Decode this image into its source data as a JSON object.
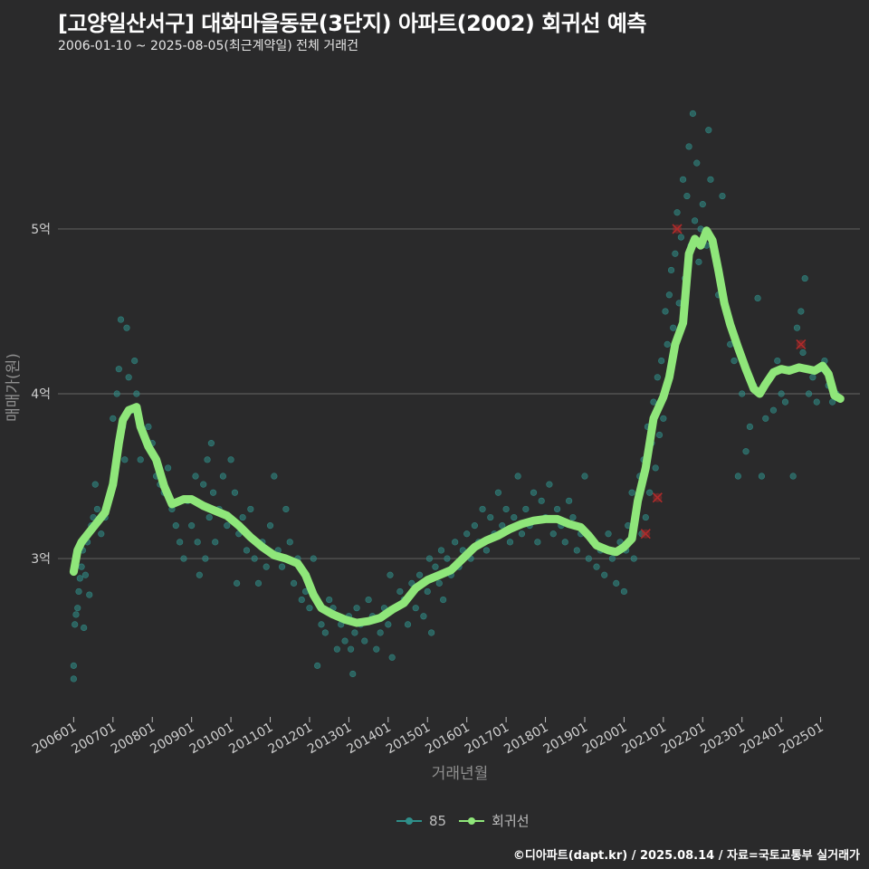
{
  "header": {
    "title": "[고양일산서구] 대화마을동문(3단지) 아파트(2002) 회귀선 예측",
    "subtitle": "2006-01-10 ~ 2025-08-05(최근계약일) 전체 거래건"
  },
  "legend": {
    "series1": "85",
    "series2": "회귀선"
  },
  "footer": "©디아파트(dapt.kr) / 2025.08.14 / 자료=국토교통부 실거래가",
  "colors": {
    "points": "#2f8f8a",
    "line": "#8fe67a",
    "outlier": "#b02a2a",
    "grid": "#5a5a5a",
    "background": "#2a2a2b"
  },
  "chart_data": {
    "type": "scatter",
    "xlabel": "거래년월",
    "ylabel": "매매가(원)",
    "xlim": [
      2005.6,
      2026.0
    ],
    "ylim": [
      2.05,
      5.95
    ],
    "y_ticks": [
      {
        "value": 3,
        "label": "3억"
      },
      {
        "value": 4,
        "label": "4억"
      },
      {
        "value": 5,
        "label": "5억"
      }
    ],
    "x_ticks": [
      {
        "value": 2006.0,
        "label": "200601"
      },
      {
        "value": 2007.0,
        "label": "200701"
      },
      {
        "value": 2008.0,
        "label": "200801"
      },
      {
        "value": 2009.0,
        "label": "200901"
      },
      {
        "value": 2010.0,
        "label": "201001"
      },
      {
        "value": 2011.0,
        "label": "201101"
      },
      {
        "value": 2012.0,
        "label": "201201"
      },
      {
        "value": 2013.0,
        "label": "201301"
      },
      {
        "value": 2014.0,
        "label": "201401"
      },
      {
        "value": 2015.0,
        "label": "201501"
      },
      {
        "value": 2016.0,
        "label": "201601"
      },
      {
        "value": 2017.0,
        "label": "201701"
      },
      {
        "value": 2018.0,
        "label": "201801"
      },
      {
        "value": 2019.0,
        "label": "201901"
      },
      {
        "value": 2020.0,
        "label": "202001"
      },
      {
        "value": 2021.0,
        "label": "202101"
      },
      {
        "value": 2022.0,
        "label": "202201"
      },
      {
        "value": 2023.0,
        "label": "202301"
      },
      {
        "value": 2024.0,
        "label": "202401"
      },
      {
        "value": 2025.0,
        "label": "202501"
      }
    ],
    "regression": [
      [
        2006.0,
        2.92
      ],
      [
        2006.1,
        3.05
      ],
      [
        2006.2,
        3.1
      ],
      [
        2006.4,
        3.16
      ],
      [
        2006.6,
        3.22
      ],
      [
        2006.8,
        3.28
      ],
      [
        2007.0,
        3.45
      ],
      [
        2007.15,
        3.7
      ],
      [
        2007.25,
        3.84
      ],
      [
        2007.4,
        3.9
      ],
      [
        2007.6,
        3.92
      ],
      [
        2007.7,
        3.8
      ],
      [
        2007.9,
        3.68
      ],
      [
        2008.1,
        3.6
      ],
      [
        2008.3,
        3.44
      ],
      [
        2008.5,
        3.33
      ],
      [
        2008.8,
        3.36
      ],
      [
        2009.0,
        3.36
      ],
      [
        2009.3,
        3.32
      ],
      [
        2009.6,
        3.29
      ],
      [
        2009.9,
        3.26
      ],
      [
        2010.2,
        3.2
      ],
      [
        2010.5,
        3.13
      ],
      [
        2010.8,
        3.07
      ],
      [
        2011.1,
        3.02
      ],
      [
        2011.4,
        3.0
      ],
      [
        2011.7,
        2.97
      ],
      [
        2011.9,
        2.9
      ],
      [
        2012.1,
        2.78
      ],
      [
        2012.3,
        2.7
      ],
      [
        2012.6,
        2.66
      ],
      [
        2012.9,
        2.63
      ],
      [
        2013.2,
        2.61
      ],
      [
        2013.5,
        2.62
      ],
      [
        2013.8,
        2.64
      ],
      [
        2014.1,
        2.69
      ],
      [
        2014.4,
        2.73
      ],
      [
        2014.7,
        2.82
      ],
      [
        2015.0,
        2.87
      ],
      [
        2015.3,
        2.9
      ],
      [
        2015.6,
        2.93
      ],
      [
        2015.9,
        3.0
      ],
      [
        2016.2,
        3.07
      ],
      [
        2016.5,
        3.11
      ],
      [
        2016.8,
        3.14
      ],
      [
        2017.1,
        3.18
      ],
      [
        2017.4,
        3.21
      ],
      [
        2017.7,
        3.23
      ],
      [
        2018.0,
        3.24
      ],
      [
        2018.3,
        3.24
      ],
      [
        2018.6,
        3.21
      ],
      [
        2018.9,
        3.19
      ],
      [
        2019.1,
        3.14
      ],
      [
        2019.3,
        3.08
      ],
      [
        2019.6,
        3.05
      ],
      [
        2019.8,
        3.04
      ],
      [
        2020.0,
        3.07
      ],
      [
        2020.2,
        3.12
      ],
      [
        2020.35,
        3.35
      ],
      [
        2020.55,
        3.55
      ],
      [
        2020.75,
        3.85
      ],
      [
        2021.0,
        3.98
      ],
      [
        2021.15,
        4.1
      ],
      [
        2021.3,
        4.3
      ],
      [
        2021.5,
        4.43
      ],
      [
        2021.65,
        4.85
      ],
      [
        2021.8,
        4.94
      ],
      [
        2021.95,
        4.9
      ],
      [
        2022.1,
        4.99
      ],
      [
        2022.25,
        4.93
      ],
      [
        2022.4,
        4.75
      ],
      [
        2022.55,
        4.55
      ],
      [
        2022.7,
        4.42
      ],
      [
        2022.9,
        4.28
      ],
      [
        2023.1,
        4.15
      ],
      [
        2023.3,
        4.03
      ],
      [
        2023.45,
        4.0
      ],
      [
        2023.6,
        4.06
      ],
      [
        2023.8,
        4.13
      ],
      [
        2024.0,
        4.15
      ],
      [
        2024.2,
        4.14
      ],
      [
        2024.45,
        4.16
      ],
      [
        2024.65,
        4.15
      ],
      [
        2024.85,
        4.14
      ],
      [
        2025.05,
        4.17
      ],
      [
        2025.2,
        4.12
      ],
      [
        2025.35,
        3.99
      ],
      [
        2025.5,
        3.97
      ]
    ],
    "scatter": [
      [
        2006.0,
        2.27
      ],
      [
        2006.0,
        2.35
      ],
      [
        2006.03,
        2.6
      ],
      [
        2006.06,
        2.66
      ],
      [
        2006.1,
        2.7
      ],
      [
        2006.13,
        2.8
      ],
      [
        2006.16,
        2.88
      ],
      [
        2006.2,
        2.95
      ],
      [
        2006.23,
        3.05
      ],
      [
        2006.26,
        2.58
      ],
      [
        2006.3,
        2.9
      ],
      [
        2006.35,
        3.1
      ],
      [
        2006.4,
        2.78
      ],
      [
        2006.45,
        3.2
      ],
      [
        2006.5,
        3.25
      ],
      [
        2006.55,
        3.45
      ],
      [
        2006.6,
        3.3
      ],
      [
        2006.7,
        3.15
      ],
      [
        2006.8,
        3.25
      ],
      [
        2006.9,
        3.35
      ],
      [
        2007.0,
        3.85
      ],
      [
        2007.05,
        3.55
      ],
      [
        2007.1,
        4.0
      ],
      [
        2007.15,
        4.15
      ],
      [
        2007.2,
        4.45
      ],
      [
        2007.25,
        3.8
      ],
      [
        2007.3,
        3.6
      ],
      [
        2007.35,
        4.4
      ],
      [
        2007.4,
        4.1
      ],
      [
        2007.5,
        3.9
      ],
      [
        2007.55,
        4.2
      ],
      [
        2007.6,
        4.0
      ],
      [
        2007.7,
        3.6
      ],
      [
        2007.8,
        3.75
      ],
      [
        2007.9,
        3.8
      ],
      [
        2008.0,
        3.7
      ],
      [
        2008.1,
        3.5
      ],
      [
        2008.2,
        3.45
      ],
      [
        2008.3,
        3.4
      ],
      [
        2008.4,
        3.55
      ],
      [
        2008.5,
        3.3
      ],
      [
        2008.6,
        3.2
      ],
      [
        2008.7,
        3.1
      ],
      [
        2008.8,
        3.0
      ],
      [
        2008.9,
        3.35
      ],
      [
        2009.0,
        3.2
      ],
      [
        2009.1,
        3.5
      ],
      [
        2009.15,
        3.1
      ],
      [
        2009.2,
        2.9
      ],
      [
        2009.3,
        3.45
      ],
      [
        2009.35,
        3.0
      ],
      [
        2009.4,
        3.6
      ],
      [
        2009.45,
        3.25
      ],
      [
        2009.5,
        3.7
      ],
      [
        2009.55,
        3.4
      ],
      [
        2009.6,
        3.1
      ],
      [
        2009.7,
        3.3
      ],
      [
        2009.8,
        3.5
      ],
      [
        2009.9,
        3.2
      ],
      [
        2010.0,
        3.6
      ],
      [
        2010.1,
        3.4
      ],
      [
        2010.15,
        2.85
      ],
      [
        2010.2,
        3.15
      ],
      [
        2010.3,
        3.25
      ],
      [
        2010.4,
        3.05
      ],
      [
        2010.5,
        3.3
      ],
      [
        2010.6,
        3.0
      ],
      [
        2010.7,
        2.85
      ],
      [
        2010.8,
        3.1
      ],
      [
        2010.9,
        2.95
      ],
      [
        2011.0,
        3.2
      ],
      [
        2011.1,
        3.5
      ],
      [
        2011.2,
        3.05
      ],
      [
        2011.3,
        2.95
      ],
      [
        2011.4,
        3.3
      ],
      [
        2011.5,
        3.1
      ],
      [
        2011.6,
        2.85
      ],
      [
        2011.7,
        3.0
      ],
      [
        2011.8,
        2.75
      ],
      [
        2011.9,
        2.8
      ],
      [
        2012.0,
        2.7
      ],
      [
        2012.1,
        3.0
      ],
      [
        2012.2,
        2.35
      ],
      [
        2012.3,
        2.6
      ],
      [
        2012.4,
        2.55
      ],
      [
        2012.5,
        2.75
      ],
      [
        2012.6,
        2.7
      ],
      [
        2012.7,
        2.45
      ],
      [
        2012.8,
        2.6
      ],
      [
        2012.9,
        2.5
      ],
      [
        2013.0,
        2.65
      ],
      [
        2013.05,
        2.45
      ],
      [
        2013.1,
        2.3
      ],
      [
        2013.15,
        2.55
      ],
      [
        2013.2,
        2.7
      ],
      [
        2013.3,
        2.6
      ],
      [
        2013.4,
        2.5
      ],
      [
        2013.5,
        2.75
      ],
      [
        2013.6,
        2.65
      ],
      [
        2013.7,
        2.45
      ],
      [
        2013.8,
        2.55
      ],
      [
        2013.9,
        2.7
      ],
      [
        2014.0,
        2.6
      ],
      [
        2014.05,
        2.9
      ],
      [
        2014.1,
        2.4
      ],
      [
        2014.2,
        2.7
      ],
      [
        2014.3,
        2.8
      ],
      [
        2014.4,
        2.75
      ],
      [
        2014.5,
        2.6
      ],
      [
        2014.6,
        2.85
      ],
      [
        2014.7,
        2.7
      ],
      [
        2014.8,
        2.9
      ],
      [
        2014.9,
        2.65
      ],
      [
        2015.0,
        2.8
      ],
      [
        2015.05,
        3.0
      ],
      [
        2015.1,
        2.55
      ],
      [
        2015.2,
        2.95
      ],
      [
        2015.3,
        2.85
      ],
      [
        2015.35,
        3.05
      ],
      [
        2015.4,
        2.75
      ],
      [
        2015.5,
        3.0
      ],
      [
        2015.6,
        2.9
      ],
      [
        2015.7,
        3.1
      ],
      [
        2015.8,
        2.95
      ],
      [
        2015.9,
        3.05
      ],
      [
        2016.0,
        3.15
      ],
      [
        2016.1,
        3.0
      ],
      [
        2016.2,
        3.2
      ],
      [
        2016.3,
        3.1
      ],
      [
        2016.4,
        3.3
      ],
      [
        2016.5,
        3.05
      ],
      [
        2016.6,
        3.25
      ],
      [
        2016.7,
        3.15
      ],
      [
        2016.8,
        3.4
      ],
      [
        2016.9,
        3.2
      ],
      [
        2017.0,
        3.3
      ],
      [
        2017.1,
        3.1
      ],
      [
        2017.2,
        3.25
      ],
      [
        2017.3,
        3.5
      ],
      [
        2017.4,
        3.15
      ],
      [
        2017.5,
        3.3
      ],
      [
        2017.6,
        3.2
      ],
      [
        2017.7,
        3.4
      ],
      [
        2017.8,
        3.1
      ],
      [
        2017.9,
        3.35
      ],
      [
        2018.0,
        3.25
      ],
      [
        2018.1,
        3.45
      ],
      [
        2018.2,
        3.15
      ],
      [
        2018.3,
        3.3
      ],
      [
        2018.4,
        3.2
      ],
      [
        2018.5,
        3.1
      ],
      [
        2018.6,
        3.35
      ],
      [
        2018.7,
        3.25
      ],
      [
        2018.8,
        3.05
      ],
      [
        2018.9,
        3.15
      ],
      [
        2019.0,
        3.5
      ],
      [
        2019.1,
        3.0
      ],
      [
        2019.2,
        3.1
      ],
      [
        2019.3,
        2.95
      ],
      [
        2019.4,
        3.05
      ],
      [
        2019.5,
        2.9
      ],
      [
        2019.6,
        3.15
      ],
      [
        2019.7,
        3.0
      ],
      [
        2019.8,
        2.85
      ],
      [
        2019.9,
        3.1
      ],
      [
        2020.0,
        2.8
      ],
      [
        2020.05,
        3.05
      ],
      [
        2020.1,
        3.2
      ],
      [
        2020.2,
        3.4
      ],
      [
        2020.25,
        3.0
      ],
      [
        2020.3,
        3.3
      ],
      [
        2020.4,
        3.5
      ],
      [
        2020.45,
        3.15
      ],
      [
        2020.5,
        3.6
      ],
      [
        2020.55,
        3.25
      ],
      [
        2020.6,
        3.8
      ],
      [
        2020.65,
        3.4
      ],
      [
        2020.7,
        3.7
      ],
      [
        2020.75,
        3.95
      ],
      [
        2020.8,
        3.55
      ],
      [
        2020.85,
        4.1
      ],
      [
        2020.9,
        3.75
      ],
      [
        2020.95,
        4.2
      ],
      [
        2021.0,
        3.85
      ],
      [
        2021.05,
        4.5
      ],
      [
        2021.1,
        4.3
      ],
      [
        2021.15,
        4.6
      ],
      [
        2021.2,
        4.75
      ],
      [
        2021.25,
        4.4
      ],
      [
        2021.3,
        4.85
      ],
      [
        2021.35,
        5.1
      ],
      [
        2021.4,
        4.55
      ],
      [
        2021.45,
        4.95
      ],
      [
        2021.5,
        5.3
      ],
      [
        2021.55,
        4.7
      ],
      [
        2021.6,
        5.2
      ],
      [
        2021.65,
        5.5
      ],
      [
        2021.7,
        4.9
      ],
      [
        2021.75,
        5.7
      ],
      [
        2021.8,
        5.05
      ],
      [
        2021.85,
        5.4
      ],
      [
        2021.9,
        4.8
      ],
      [
        2021.95,
        5.0
      ],
      [
        2022.0,
        5.15
      ],
      [
        2022.1,
        4.9
      ],
      [
        2022.15,
        5.6
      ],
      [
        2022.2,
        5.3
      ],
      [
        2022.3,
        4.85
      ],
      [
        2022.4,
        4.6
      ],
      [
        2022.5,
        5.2
      ],
      [
        2022.6,
        4.5
      ],
      [
        2022.7,
        4.3
      ],
      [
        2022.8,
        4.2
      ],
      [
        2022.9,
        3.5
      ],
      [
        2023.0,
        4.0
      ],
      [
        2023.1,
        3.65
      ],
      [
        2023.2,
        3.8
      ],
      [
        2023.3,
        4.05
      ],
      [
        2023.4,
        4.58
      ],
      [
        2023.5,
        3.5
      ],
      [
        2023.6,
        3.85
      ],
      [
        2023.7,
        4.1
      ],
      [
        2023.8,
        3.9
      ],
      [
        2023.9,
        4.2
      ],
      [
        2024.0,
        4.0
      ],
      [
        2024.1,
        3.95
      ],
      [
        2024.2,
        4.15
      ],
      [
        2024.3,
        3.5
      ],
      [
        2024.4,
        4.4
      ],
      [
        2024.5,
        4.5
      ],
      [
        2024.55,
        4.25
      ],
      [
        2024.6,
        4.7
      ],
      [
        2024.7,
        4.0
      ],
      [
        2024.8,
        4.1
      ],
      [
        2024.9,
        3.95
      ],
      [
        2025.0,
        4.15
      ],
      [
        2025.1,
        4.2
      ],
      [
        2025.2,
        4.05
      ],
      [
        2025.3,
        3.95
      ],
      [
        2025.4,
        4.0
      ]
    ],
    "outliers": [
      [
        2020.55,
        3.15
      ],
      [
        2020.85,
        3.37
      ],
      [
        2021.35,
        5.0
      ],
      [
        2024.5,
        4.3
      ]
    ]
  }
}
